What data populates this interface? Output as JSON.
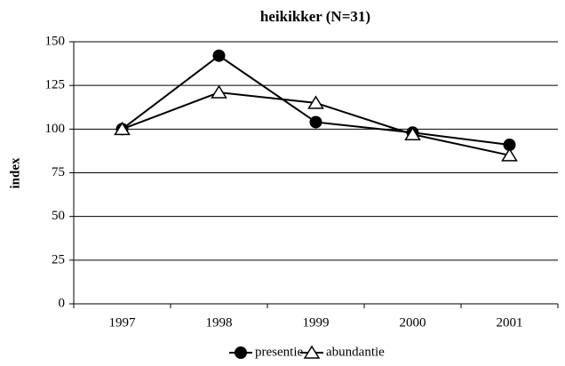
{
  "chart_data": {
    "type": "line",
    "title": "heikikker  (N=31)",
    "y_label": "index",
    "categories": [
      "1997",
      "1998",
      "1999",
      "2000",
      "2001"
    ],
    "series": [
      {
        "name": "presentie",
        "color": "#000000",
        "marker": "circle",
        "values": [
          100,
          142,
          104,
          98,
          91
        ]
      },
      {
        "name": "abundantie",
        "color": "#000000",
        "marker": "triangle",
        "values": [
          100,
          121,
          115,
          97,
          85
        ]
      }
    ],
    "ylim": [
      0,
      150
    ],
    "yticks": [
      0,
      25,
      50,
      75,
      100,
      125,
      150
    ],
    "grid": true,
    "legend": "bottom"
  }
}
